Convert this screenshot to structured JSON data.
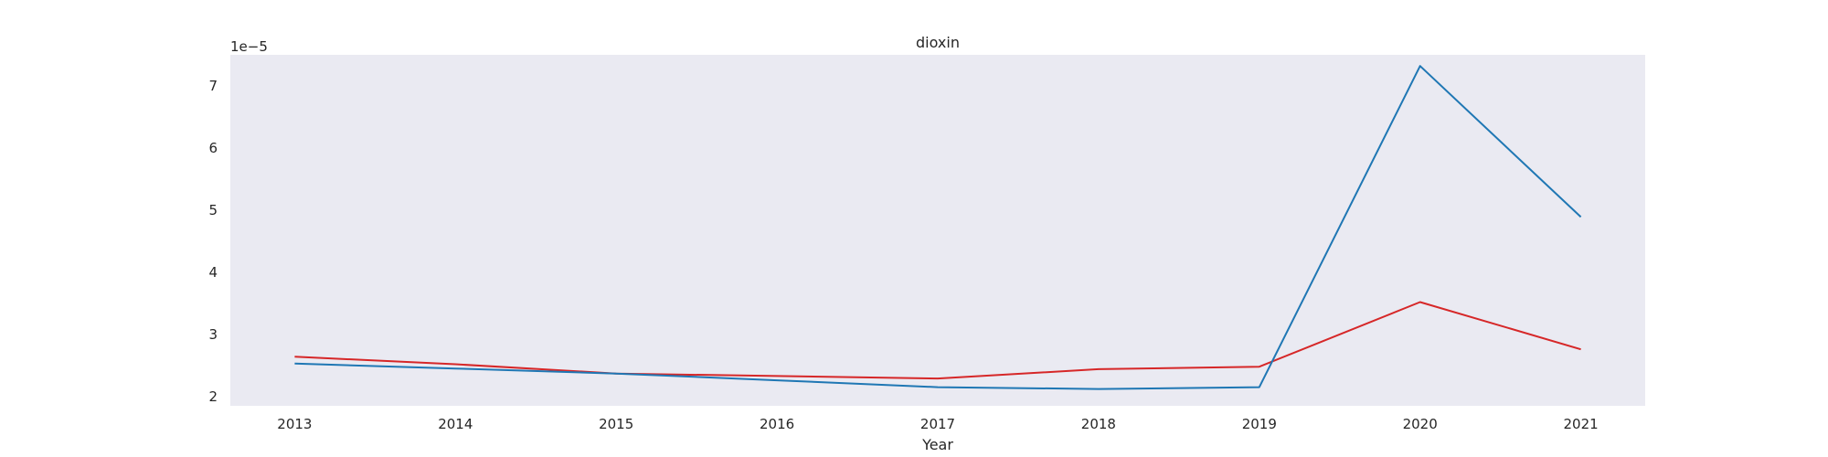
{
  "chart_data": {
    "type": "line",
    "title": "dioxin",
    "xlabel": "Year",
    "ylabel": "",
    "y_offset_text": "1e−5",
    "y_scale_exponent": -5,
    "x": [
      2013,
      2014,
      2015,
      2016,
      2017,
      2018,
      2019,
      2020,
      2021
    ],
    "x_tick_labels": [
      "2013",
      "2014",
      "2015",
      "2016",
      "2017",
      "2018",
      "2019",
      "2020",
      "2021"
    ],
    "y_tick_values": [
      2,
      3,
      4,
      5,
      6,
      7
    ],
    "y_tick_labels": [
      "2",
      "3",
      "4",
      "5",
      "6",
      "7"
    ],
    "xlim": [
      2012.6,
      2021.4
    ],
    "ylim": [
      1.85,
      7.5
    ],
    "grid": false,
    "legend": "none",
    "background_color": "#eaeaf2",
    "series": [
      {
        "color": "#d62728",
        "values": [
          2.64,
          2.52,
          2.37,
          2.33,
          2.29,
          2.44,
          2.48,
          3.52,
          2.76
        ]
      },
      {
        "color": "#1f77b4",
        "values": [
          2.53,
          2.45,
          2.37,
          2.26,
          2.15,
          2.12,
          2.15,
          7.32,
          4.89
        ]
      }
    ]
  }
}
